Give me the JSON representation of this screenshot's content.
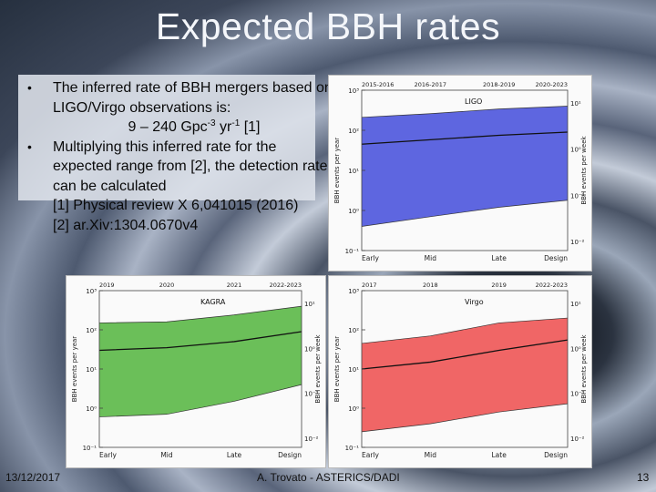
{
  "slide": {
    "title": "Expected BBH rates",
    "bullet1": "The inferred rate of BBH mergers based on LIGO/Virgo observations is:",
    "rate_line_prefix": "9 – 240 Gpc",
    "rate_exp1": "-3",
    "rate_yr": " yr",
    "rate_exp2": "-1",
    "rate_ref": " [1]",
    "bullet2": "Multiplying this inferred rate for the expected range from [2], the detection rate can be calculated",
    "ref1": "[1] Physical review X 6,041015 (2016)",
    "ref2": "[2] ar.Xiv:1304.0670v4"
  },
  "footer": {
    "date": "13/12/2017",
    "author": "A. Trovato - ASTERICS/DADI",
    "page": "13"
  },
  "chart_data": [
    {
      "type": "area",
      "title": "LIGO",
      "top_ticks": [
        "2015-2016",
        "2016-2017",
        "2018-2019",
        "2020-2023"
      ],
      "categories": [
        "Early",
        "Mid",
        "Late",
        "Design"
      ],
      "ylabel": "BBH events per year",
      "ylabel_right": "BBH events per week",
      "ylim": [
        0.1,
        1000
      ],
      "yticks": [
        "10³",
        "10²",
        "10¹",
        "10⁰",
        "10⁻¹"
      ],
      "yticks_right": [
        "10¹",
        "10⁰",
        "10⁻¹",
        "10⁻²"
      ],
      "band_color": "#5e66e0",
      "series": [
        {
          "name": "upper",
          "values": [
            210,
            260,
            340,
            400
          ]
        },
        {
          "name": "median",
          "values": [
            45,
            58,
            75,
            90
          ]
        },
        {
          "name": "lower",
          "values": [
            0.4,
            0.7,
            1.2,
            1.8
          ]
        }
      ]
    },
    {
      "type": "area",
      "title": "KAGRA",
      "top_ticks": [
        "2019",
        "2020",
        "2021",
        "2022-2023"
      ],
      "categories": [
        "Early",
        "Mid",
        "Late",
        "Design"
      ],
      "ylabel": "BBH events per year",
      "ylabel_right": "BBH events per week",
      "ylim": [
        0.1,
        1000
      ],
      "yticks": [
        "10³",
        "10²",
        "10¹",
        "10⁰",
        "10⁻¹"
      ],
      "yticks_right": [
        "10¹",
        "10⁰",
        "10⁻¹",
        "10⁻²"
      ],
      "band_color": "#6bbf59",
      "series": [
        {
          "name": "upper",
          "values": [
            150,
            160,
            240,
            400
          ]
        },
        {
          "name": "median",
          "values": [
            30,
            35,
            50,
            90
          ]
        },
        {
          "name": "lower",
          "values": [
            0.6,
            0.7,
            1.5,
            4
          ]
        }
      ]
    },
    {
      "type": "area",
      "title": "Virgo",
      "top_ticks": [
        "2017",
        "2018",
        "2019",
        "2022-2023"
      ],
      "categories": [
        "Early",
        "Mid",
        "Late",
        "Design"
      ],
      "ylabel": "BBH events per year",
      "ylabel_right": "BBH events per week",
      "ylim": [
        0.1,
        1000
      ],
      "yticks": [
        "10³",
        "10²",
        "10¹",
        "10⁰",
        "10⁻¹"
      ],
      "yticks_right": [
        "10¹",
        "10⁰",
        "10⁻¹",
        "10⁻²"
      ],
      "band_color": "#f06666",
      "series": [
        {
          "name": "upper",
          "values": [
            45,
            70,
            150,
            200
          ]
        },
        {
          "name": "median",
          "values": [
            10,
            15,
            30,
            55
          ]
        },
        {
          "name": "lower",
          "values": [
            0.25,
            0.4,
            0.8,
            1.3
          ]
        }
      ]
    }
  ]
}
